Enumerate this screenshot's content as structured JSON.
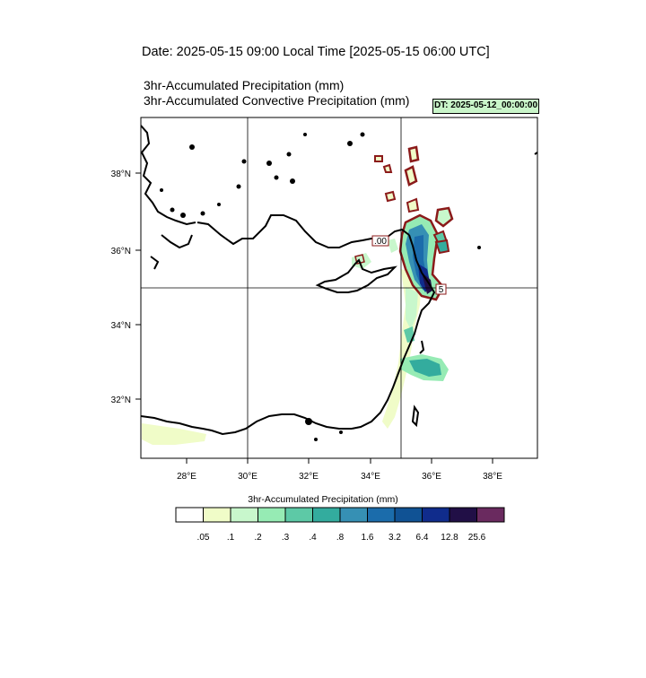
{
  "header": {
    "date_title": "Date: 2025-05-15  09:00 Local Time [2025-05-15  06:00 UTC]",
    "subtitle_1": "3hr-Accumulated Precipitation   (mm)",
    "subtitle_2": "3hr-Accumulated Convective Precipitation   (mm)",
    "dt_badge": "DT: 2025-05-12_00:00:00"
  },
  "map": {
    "lat_ticks": [
      "38°N",
      "36°N",
      "34°N",
      "32°N"
    ],
    "lon_ticks": [
      "28°E",
      "30°E",
      "32°E",
      "34°E",
      "36°E",
      "38°E"
    ],
    "contour_labels": [
      ".00",
      "5"
    ]
  },
  "colorbar": {
    "title": "3hr-Accumulated Precipitation  (mm)",
    "labels": [
      ".05",
      ".1",
      ".2",
      ".3",
      ".4",
      ".8",
      "1.6",
      "3.2",
      "6.4",
      "12.8",
      "25.6"
    ],
    "colors": [
      "#ffffff",
      "#f0fcc8",
      "#c8f7cc",
      "#96ebb4",
      "#5dc9a6",
      "#33ac9e",
      "#3690b4",
      "#1b6cab",
      "#105294",
      "#102c8c",
      "#210f46",
      "#6a2a5f"
    ]
  }
}
